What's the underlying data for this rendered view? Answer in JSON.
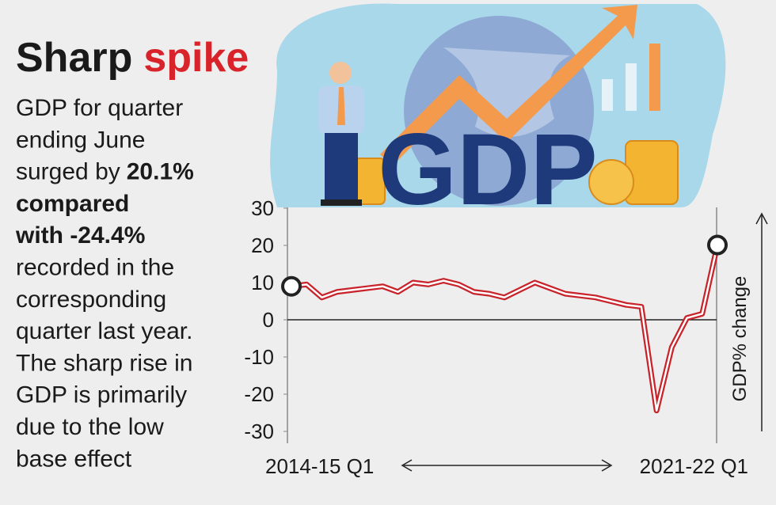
{
  "title": [
    "Sharp",
    "spike"
  ],
  "description": [
    [
      {
        "text": "GDP for quarter",
        "bold": false
      }
    ],
    [
      {
        "text": "ending June",
        "bold": false
      }
    ],
    [
      {
        "text": "surged by",
        "bold": false
      },
      {
        "text": "20.1%",
        "bold": true
      }
    ],
    [
      {
        "text": "compared",
        "bold": true
      }
    ],
    [
      {
        "text": "with -24.4%",
        "bold": true
      }
    ],
    [
      {
        "text": "recorded in the",
        "bold": false
      }
    ],
    [
      {
        "text": "corresponding",
        "bold": false
      }
    ],
    [
      {
        "text": "quarter last year.",
        "bold": false
      }
    ],
    [
      {
        "text": "The sharp rise in",
        "bold": false
      }
    ],
    [
      {
        "text": "GDP is primarily",
        "bold": false
      }
    ],
    [
      {
        "text": "due to the low",
        "bold": false
      }
    ],
    [
      {
        "text": "base effect",
        "bold": false
      }
    ]
  ],
  "illustration_text": "GDP",
  "chart_data": {
    "type": "line",
    "y_label": "GDP% change",
    "categories": [
      "2014-15 Q1",
      null,
      null,
      null,
      null,
      null,
      null,
      null,
      null,
      null,
      null,
      null,
      null,
      null,
      null,
      null,
      null,
      null,
      null,
      null,
      null,
      null,
      null,
      null,
      null,
      null,
      null,
      null,
      "2021-22 Q1"
    ],
    "series": [
      {
        "name": "GDP% change",
        "color": "#c8232a",
        "values": [
          9,
          9.5,
          6,
          7.5,
          8,
          8.5,
          9,
          7.5,
          10,
          9.5,
          10.5,
          9.5,
          7.5,
          7,
          6,
          8,
          10,
          8.5,
          7,
          6.5,
          6,
          5,
          4,
          3.5,
          -24.4,
          -7.4,
          0.5,
          1.6,
          20.1
        ]
      }
    ],
    "ylim": [
      -30,
      30
    ],
    "yticks": [
      30,
      20,
      10,
      0,
      -10,
      -20,
      -30
    ]
  }
}
